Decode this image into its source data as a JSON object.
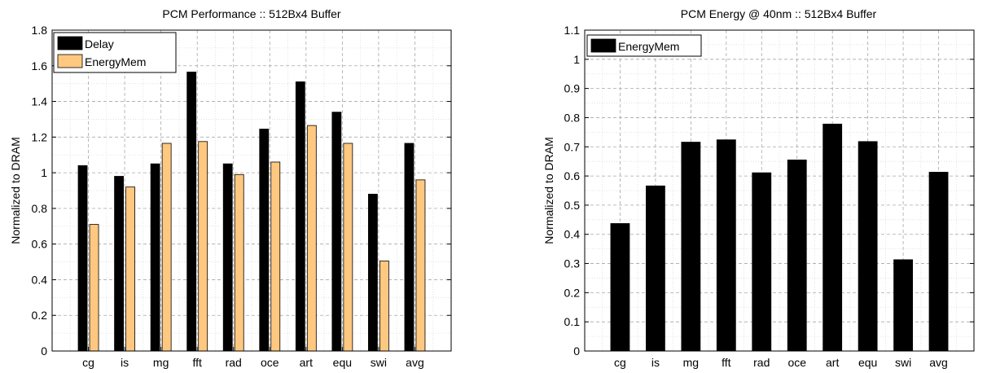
{
  "chart_data": [
    {
      "type": "bar",
      "title": "PCM Performance :: 512Bx4 Buffer",
      "xlabel": "",
      "ylabel": "Normalized to DRAM",
      "ylim": [
        0,
        1.8
      ],
      "yticks": [
        0,
        0.2,
        0.4,
        0.6,
        0.8,
        1,
        1.2,
        1.4,
        1.6,
        1.8
      ],
      "ytick_labels": [
        "0",
        "0.2",
        "0.4",
        "0.6",
        "0.8",
        "1",
        "1.2",
        "1.4",
        "1.6",
        "1.8"
      ],
      "grid": true,
      "legend_position": "top-left",
      "categories": [
        "cg",
        "is",
        "mg",
        "fft",
        "rad",
        "oce",
        "art",
        "equ",
        "swi",
        "avg"
      ],
      "series": [
        {
          "name": "Delay",
          "color": "#000000",
          "values": [
            1.04,
            0.98,
            1.05,
            1.565,
            1.05,
            1.245,
            1.51,
            1.34,
            0.88,
            1.165
          ]
        },
        {
          "name": "EnergyMem",
          "color": "#FFC880",
          "values": [
            0.71,
            0.92,
            1.165,
            1.175,
            0.99,
            1.06,
            1.265,
            1.165,
            0.505,
            0.96
          ]
        }
      ]
    },
    {
      "type": "bar",
      "title": "PCM Energy @ 40nm :: 512Bx4 Buffer",
      "xlabel": "",
      "ylabel": "Normalized to DRAM",
      "ylim": [
        0,
        1.1
      ],
      "yticks": [
        0,
        0.1,
        0.2,
        0.3,
        0.4,
        0.5,
        0.6,
        0.7,
        0.8,
        0.9,
        1,
        1.1
      ],
      "ytick_labels": [
        "0",
        "0.1",
        "0.2",
        "0.3",
        "0.4",
        "0.5",
        "0.6",
        "0.7",
        "0.8",
        "0.9",
        "1",
        "1.1"
      ],
      "grid": true,
      "legend_position": "top-left",
      "categories": [
        "cg",
        "is",
        "mg",
        "fft",
        "rad",
        "oce",
        "art",
        "equ",
        "swi",
        "avg"
      ],
      "series": [
        {
          "name": "EnergyMem",
          "color": "#000000",
          "values": [
            0.437,
            0.566,
            0.716,
            0.724,
            0.611,
            0.655,
            0.778,
            0.718,
            0.313,
            0.613
          ]
        }
      ]
    }
  ]
}
